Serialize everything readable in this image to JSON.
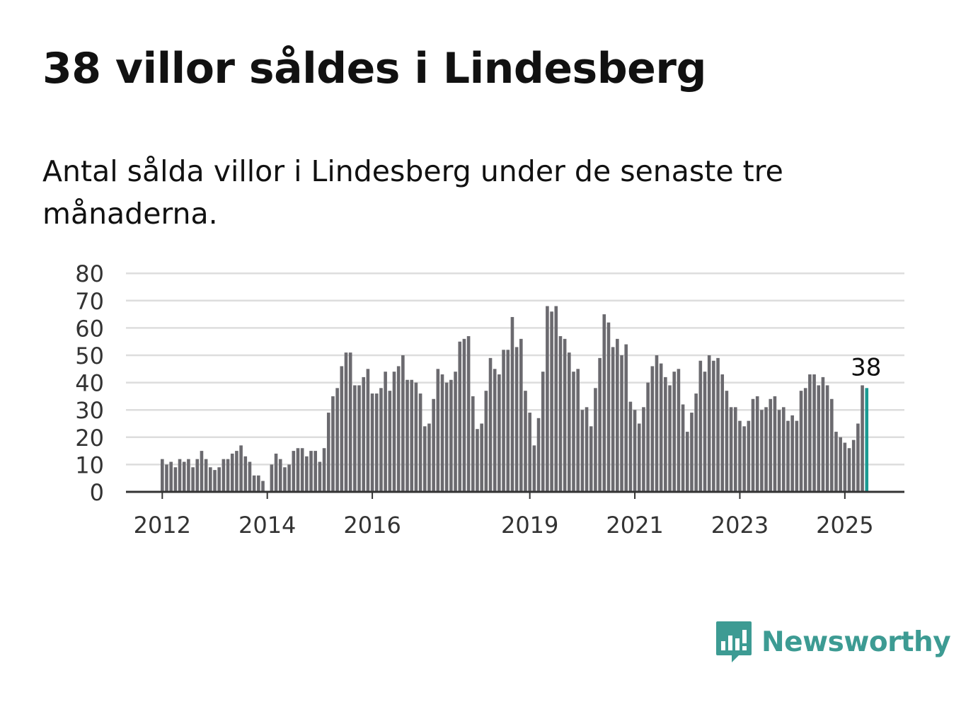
{
  "title": "38 villor såldes i Lindesberg",
  "subtitle": "Antal sålda villor i Lindesberg under de senaste tre månaderna.",
  "brand": {
    "name": "Newsworthy",
    "logo_icon": "newsworthy-bar-chart-bubble-icon",
    "color": "#3d9b93"
  },
  "colors": {
    "bar": "#6b6a6f",
    "highlight": "#1a9a93",
    "grid": "#dddddd",
    "axis": "#333333"
  },
  "chart_data": {
    "type": "bar",
    "title": "38 villor såldes i Lindesberg",
    "ylim": [
      0,
      80
    ],
    "y_ticks": [
      0,
      10,
      20,
      30,
      40,
      50,
      60,
      70,
      80
    ],
    "x_ticks": [
      "2012",
      "2014",
      "2016",
      "2019",
      "2021",
      "2023",
      "2025"
    ],
    "grid": true,
    "start": "2012-01",
    "frequency": "monthly",
    "highlight_label": "38",
    "values": [
      12,
      10,
      11,
      9,
      12,
      11,
      12,
      9,
      12,
      15,
      12,
      9,
      8,
      9,
      12,
      12,
      14,
      15,
      17,
      13,
      11,
      6,
      6,
      4,
      0,
      10,
      14,
      12,
      9,
      10,
      15,
      16,
      16,
      13,
      15,
      15,
      11,
      16,
      29,
      35,
      38,
      46,
      51,
      51,
      39,
      39,
      42,
      45,
      36,
      36,
      38,
      44,
      37,
      44,
      46,
      50,
      41,
      41,
      40,
      36,
      24,
      25,
      34,
      45,
      43,
      40,
      41,
      44,
      55,
      56,
      57,
      35,
      23,
      25,
      37,
      49,
      45,
      43,
      52,
      52,
      64,
      53,
      56,
      37,
      29,
      17,
      27,
      44,
      68,
      66,
      68,
      57,
      56,
      51,
      44,
      45,
      30,
      31,
      24,
      38,
      49,
      65,
      62,
      53,
      56,
      50,
      54,
      33,
      30,
      25,
      31,
      40,
      46,
      50,
      47,
      42,
      39,
      44,
      45,
      32,
      22,
      29,
      36,
      48,
      44,
      50,
      48,
      49,
      43,
      37,
      31,
      31,
      26,
      24,
      26,
      34,
      35,
      30,
      31,
      34,
      35,
      30,
      31,
      26,
      28,
      26,
      37,
      38,
      43,
      43,
      39,
      42,
      39,
      34,
      22,
      20,
      18,
      16,
      19,
      25,
      39,
      38
    ]
  }
}
